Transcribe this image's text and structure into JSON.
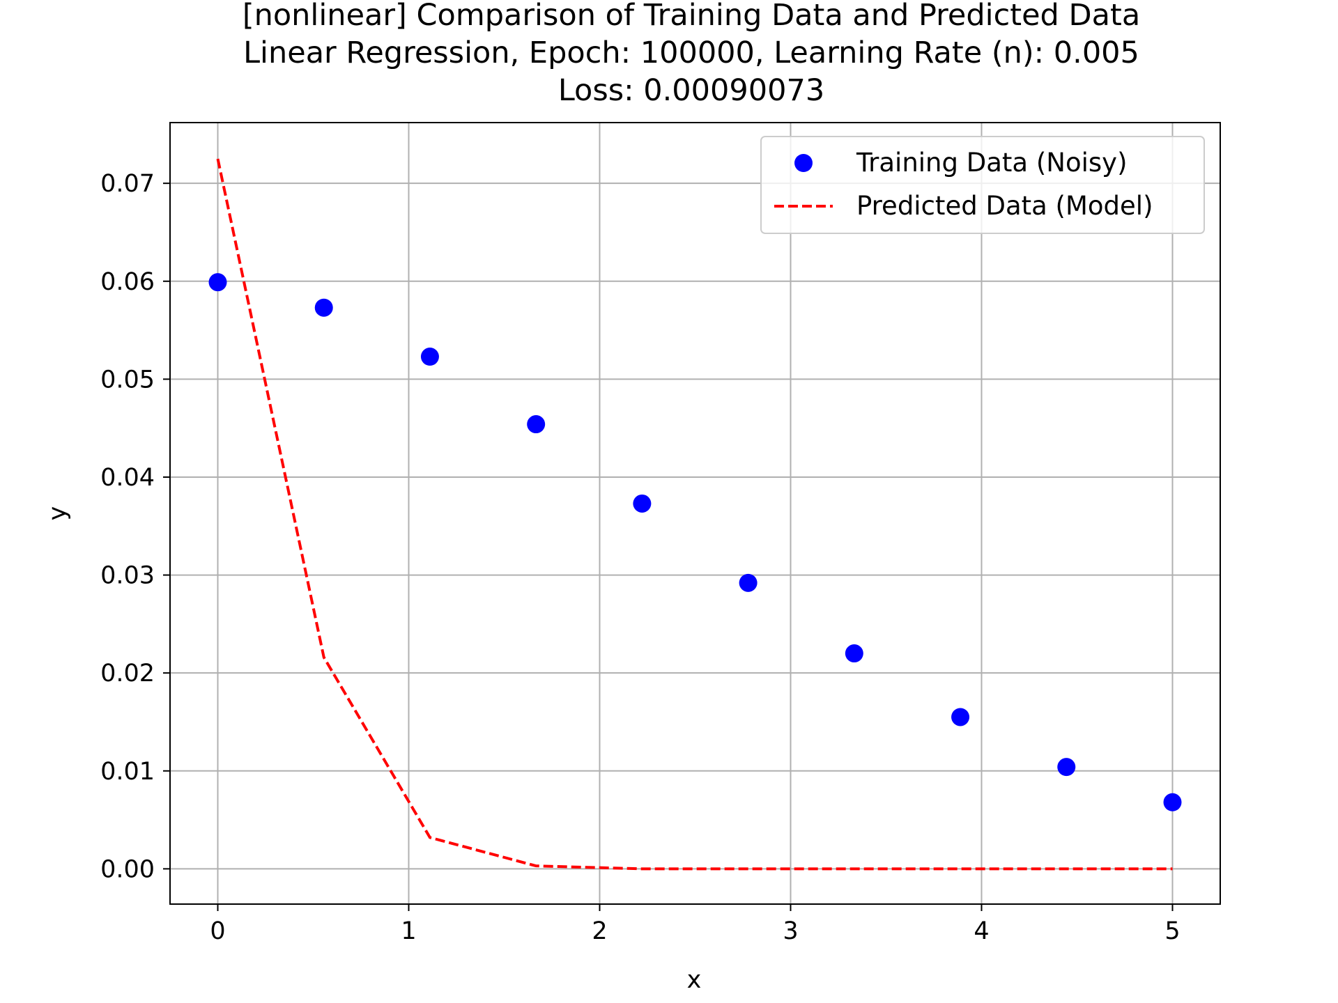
{
  "chart_data": {
    "type": "scatter",
    "title_lines": [
      "[nonlinear] Comparison of Training Data and Predicted Data",
      "Linear Regression, Epoch: 100000, Learning Rate (n): 0.005",
      "Loss: 0.00090073"
    ],
    "xlabel": "x",
    "ylabel": "y",
    "xlim": [
      -0.25,
      5.25
    ],
    "ylim": [
      -0.0036,
      0.0762
    ],
    "xticks": [
      0,
      1,
      2,
      3,
      4,
      5
    ],
    "xtick_labels": [
      "0",
      "1",
      "2",
      "3",
      "4",
      "5"
    ],
    "yticks": [
      0.0,
      0.01,
      0.02,
      0.03,
      0.04,
      0.05,
      0.06,
      0.07
    ],
    "ytick_labels": [
      "0.00",
      "0.01",
      "0.02",
      "0.03",
      "0.04",
      "0.05",
      "0.06",
      "0.07"
    ],
    "grid": true,
    "legend_position": "top-right",
    "series": [
      {
        "name": "Training Data (Noisy)",
        "kind": "scatter",
        "color": "#0000ff",
        "x": [
          0.0,
          0.5556,
          1.1111,
          1.6667,
          2.2222,
          2.7778,
          3.3333,
          3.8889,
          4.4444,
          5.0
        ],
        "y": [
          0.0599,
          0.0573,
          0.0523,
          0.0454,
          0.0373,
          0.0292,
          0.022,
          0.0155,
          0.0104,
          0.0068
        ]
      },
      {
        "name": "Predicted Data (Model)",
        "kind": "line",
        "style": "dashed",
        "color": "#ff0000",
        "x": [
          0.0,
          0.5556,
          1.1111,
          1.6667,
          2.2222,
          2.7778,
          3.3333,
          3.8889,
          4.4444,
          5.0
        ],
        "y": [
          0.0725,
          0.0216,
          0.0032,
          0.0003,
          0.0,
          0.0,
          0.0,
          0.0,
          0.0,
          0.0
        ]
      }
    ]
  }
}
